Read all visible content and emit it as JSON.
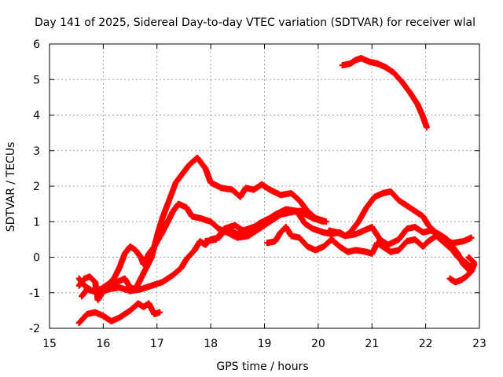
{
  "chart_data": {
    "type": "scatter",
    "title": "Day 141 of 2025, Sidereal Day-to-day VTEC variation (SDTVAR) for receiver wlal",
    "xlabel": "GPS time / hours",
    "ylabel": "SDTVAR / TECUs",
    "xlim": [
      15,
      23
    ],
    "ylim": [
      -2,
      6
    ],
    "x_ticks": [
      15,
      16,
      17,
      18,
      19,
      20,
      21,
      22,
      23
    ],
    "y_ticks": [
      -2,
      -1,
      0,
      1,
      2,
      3,
      4,
      5,
      6
    ],
    "x_tick_labels": [
      "15",
      "16",
      "17",
      "18",
      "19",
      "20",
      "21",
      "22",
      "23"
    ],
    "y_tick_labels": [
      "-2",
      "-1",
      "0",
      "1",
      "2",
      "3",
      "4",
      "5",
      "6"
    ],
    "grid": true,
    "marker": "plus",
    "color": "#ff0000",
    "series": [
      {
        "name": "arc-1",
        "points": [
          [
            15.55,
            -1.85
          ],
          [
            15.7,
            -1.6
          ],
          [
            15.85,
            -1.55
          ],
          [
            16.0,
            -1.65
          ],
          [
            16.15,
            -1.8
          ],
          [
            16.3,
            -1.7
          ],
          [
            16.5,
            -1.5
          ],
          [
            16.65,
            -1.3
          ],
          [
            16.75,
            -1.4
          ],
          [
            16.85,
            -1.3
          ],
          [
            16.95,
            -1.6
          ],
          [
            17.05,
            -1.55
          ]
        ]
      },
      {
        "name": "arc-2",
        "points": [
          [
            15.55,
            -0.6
          ],
          [
            15.65,
            -0.8
          ],
          [
            15.8,
            -0.95
          ],
          [
            15.95,
            -0.9
          ],
          [
            16.1,
            -0.75
          ],
          [
            16.2,
            -0.6
          ],
          [
            16.3,
            -0.3
          ],
          [
            16.4,
            0.1
          ],
          [
            16.5,
            0.3
          ],
          [
            16.6,
            0.2
          ],
          [
            16.7,
            0.0
          ],
          [
            16.75,
            -0.2
          ],
          [
            16.85,
            0.1
          ],
          [
            16.95,
            0.3
          ],
          [
            17.1,
            0.7
          ],
          [
            17.2,
            1.0
          ],
          [
            17.3,
            1.3
          ],
          [
            17.4,
            1.5
          ],
          [
            17.55,
            1.4
          ],
          [
            17.65,
            1.15
          ],
          [
            17.8,
            1.1
          ],
          [
            18.0,
            1.0
          ],
          [
            18.15,
            0.8
          ],
          [
            18.3,
            0.7
          ],
          [
            18.5,
            0.55
          ],
          [
            18.7,
            0.6
          ],
          [
            18.9,
            0.8
          ],
          [
            19.1,
            1.0
          ],
          [
            19.3,
            1.2
          ],
          [
            19.5,
            1.3
          ],
          [
            19.7,
            1.25
          ],
          [
            19.9,
            1.1
          ],
          [
            20.1,
            1.0
          ]
        ]
      },
      {
        "name": "arc-3",
        "points": [
          [
            15.55,
            -0.8
          ],
          [
            15.65,
            -0.6
          ],
          [
            15.75,
            -0.55
          ],
          [
            15.85,
            -0.7
          ],
          [
            15.9,
            -1.2
          ],
          [
            16.0,
            -0.95
          ],
          [
            16.1,
            -0.8
          ],
          [
            16.25,
            -0.7
          ],
          [
            16.4,
            -0.6
          ],
          [
            16.5,
            -0.85
          ],
          [
            16.6,
            -0.9
          ],
          [
            16.7,
            -0.6
          ],
          [
            16.8,
            -0.3
          ],
          [
            16.9,
            0.0
          ],
          [
            17.0,
            0.6
          ],
          [
            17.1,
            1.1
          ],
          [
            17.2,
            1.5
          ],
          [
            17.35,
            2.1
          ],
          [
            17.5,
            2.4
          ],
          [
            17.6,
            2.6
          ],
          [
            17.75,
            2.8
          ],
          [
            17.9,
            2.5
          ],
          [
            18.0,
            2.1
          ],
          [
            18.2,
            1.95
          ],
          [
            18.4,
            1.9
          ],
          [
            18.55,
            1.7
          ],
          [
            18.65,
            1.95
          ],
          [
            18.8,
            1.9
          ],
          [
            18.95,
            2.05
          ],
          [
            19.1,
            1.9
          ],
          [
            19.3,
            1.75
          ],
          [
            19.5,
            1.8
          ],
          [
            19.65,
            1.6
          ],
          [
            19.8,
            1.3
          ],
          [
            19.95,
            1.1
          ],
          [
            20.15,
            1.0
          ]
        ]
      },
      {
        "name": "arc-4",
        "points": [
          [
            15.6,
            -1.1
          ],
          [
            15.7,
            -0.9
          ],
          [
            15.8,
            -0.95
          ],
          [
            15.95,
            -1.0
          ],
          [
            16.1,
            -0.9
          ],
          [
            16.3,
            -0.85
          ],
          [
            16.5,
            -0.95
          ],
          [
            16.7,
            -0.9
          ],
          [
            16.9,
            -0.8
          ],
          [
            17.1,
            -0.7
          ],
          [
            17.3,
            -0.5
          ],
          [
            17.45,
            -0.3
          ],
          [
            17.55,
            -0.05
          ],
          [
            17.7,
            0.2
          ],
          [
            17.8,
            0.45
          ],
          [
            17.9,
            0.35
          ],
          [
            18.0,
            0.5
          ],
          [
            18.15,
            0.55
          ],
          [
            18.3,
            0.8
          ],
          [
            18.5,
            0.65
          ],
          [
            18.7,
            0.7
          ],
          [
            18.9,
            0.95
          ],
          [
            19.1,
            1.1
          ],
          [
            19.3,
            1.2
          ],
          [
            19.45,
            1.25
          ],
          [
            19.6,
            1.3
          ],
          [
            19.75,
            1.3
          ]
        ]
      },
      {
        "name": "arc-5",
        "points": [
          [
            19.05,
            0.4
          ],
          [
            19.2,
            0.45
          ],
          [
            19.3,
            0.7
          ],
          [
            19.4,
            0.85
          ],
          [
            19.5,
            0.6
          ],
          [
            19.65,
            0.55
          ],
          [
            19.8,
            0.3
          ],
          [
            19.95,
            0.2
          ],
          [
            20.1,
            0.3
          ],
          [
            20.25,
            0.5
          ],
          [
            20.4,
            0.3
          ],
          [
            20.55,
            0.15
          ],
          [
            20.7,
            0.2
          ],
          [
            20.9,
            0.15
          ],
          [
            21.0,
            0.1
          ],
          [
            21.1,
            0.4
          ],
          [
            21.2,
            0.3
          ],
          [
            21.35,
            0.15
          ],
          [
            21.5,
            0.2
          ],
          [
            21.65,
            0.45
          ],
          [
            21.8,
            0.5
          ],
          [
            21.95,
            0.3
          ],
          [
            22.05,
            0.45
          ],
          [
            22.2,
            0.6
          ],
          [
            22.35,
            0.4
          ],
          [
            22.5,
            0.2
          ],
          [
            22.6,
            0.0
          ],
          [
            22.75,
            -0.15
          ],
          [
            22.85,
            -0.3
          ]
        ]
      },
      {
        "name": "arc-6",
        "points": [
          [
            17.9,
            0.45
          ],
          [
            18.1,
            0.5
          ],
          [
            18.25,
            0.8
          ],
          [
            18.45,
            0.9
          ],
          [
            18.6,
            0.75
          ],
          [
            18.8,
            0.85
          ],
          [
            19.0,
            1.0
          ],
          [
            19.2,
            1.2
          ],
          [
            19.4,
            1.35
          ],
          [
            19.6,
            1.3
          ],
          [
            19.75,
            0.95
          ],
          [
            19.9,
            0.8
          ],
          [
            20.1,
            0.7
          ],
          [
            20.25,
            0.65
          ],
          [
            20.4,
            0.7
          ],
          [
            20.5,
            0.6
          ],
          [
            20.6,
            0.7
          ],
          [
            20.75,
            1.0
          ],
          [
            20.9,
            1.4
          ],
          [
            21.05,
            1.7
          ],
          [
            21.2,
            1.8
          ],
          [
            21.35,
            1.85
          ],
          [
            21.5,
            1.6
          ],
          [
            21.65,
            1.45
          ],
          [
            21.8,
            1.3
          ],
          [
            21.95,
            1.15
          ],
          [
            22.05,
            0.9
          ],
          [
            22.15,
            0.75
          ],
          [
            22.35,
            0.5
          ],
          [
            22.5,
            0.4
          ],
          [
            22.7,
            0.45
          ],
          [
            22.85,
            0.55
          ]
        ]
      },
      {
        "name": "arc-7",
        "points": [
          [
            20.2,
            0.75
          ],
          [
            20.35,
            0.7
          ],
          [
            20.5,
            0.6
          ],
          [
            20.7,
            0.65
          ],
          [
            20.85,
            0.75
          ],
          [
            21.0,
            0.85
          ],
          [
            21.15,
            0.5
          ],
          [
            21.3,
            0.35
          ],
          [
            21.5,
            0.5
          ],
          [
            21.65,
            0.8
          ],
          [
            21.8,
            0.85
          ],
          [
            21.95,
            0.7
          ],
          [
            22.1,
            0.75
          ],
          [
            22.25,
            0.65
          ],
          [
            22.4,
            0.5
          ],
          [
            22.5,
            0.3
          ],
          [
            22.6,
            0.1
          ],
          [
            22.7,
            -0.2
          ],
          [
            22.8,
            -0.35
          ],
          [
            22.9,
            -0.15
          ],
          [
            22.8,
            0.0
          ]
        ]
      },
      {
        "name": "arc-8",
        "points": [
          [
            22.45,
            -0.6
          ],
          [
            22.55,
            -0.7
          ],
          [
            22.65,
            -0.65
          ],
          [
            22.75,
            -0.55
          ],
          [
            22.85,
            -0.4
          ],
          [
            22.9,
            -0.2
          ]
        ]
      },
      {
        "name": "arc-9",
        "points": [
          [
            20.45,
            5.4
          ],
          [
            20.6,
            5.45
          ],
          [
            20.7,
            5.55
          ],
          [
            20.8,
            5.6
          ],
          [
            20.95,
            5.5
          ],
          [
            21.1,
            5.45
          ],
          [
            21.25,
            5.35
          ],
          [
            21.4,
            5.2
          ],
          [
            21.55,
            4.95
          ],
          [
            21.7,
            4.65
          ],
          [
            21.85,
            4.3
          ],
          [
            21.95,
            3.95
          ],
          [
            22.02,
            3.65
          ]
        ]
      }
    ]
  }
}
